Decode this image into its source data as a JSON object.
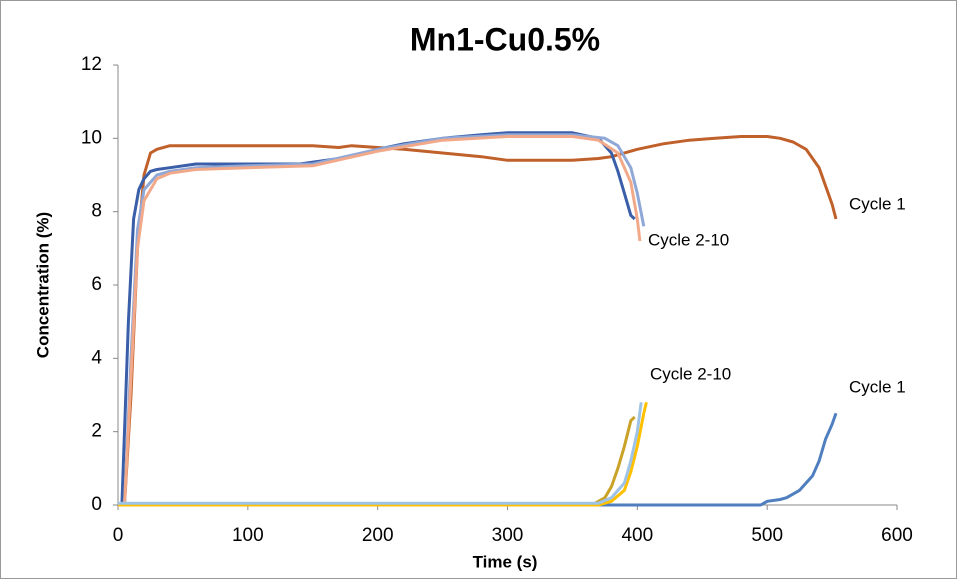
{
  "chart_data": {
    "type": "line",
    "title": "Mn1-Cu0.5%",
    "xlabel": "Time (s)",
    "ylabel": "Concentration (%)",
    "xlim": [
      0,
      600
    ],
    "xticks": [
      0,
      100,
      200,
      300,
      400,
      500,
      600
    ],
    "ylim": [
      0,
      12
    ],
    "yticks": [
      0,
      2,
      4,
      6,
      8,
      10,
      12
    ],
    "grid": false,
    "annotations": [
      "Cycle 1",
      "Cycle 2-10",
      "Cycle 2-10",
      "Cycle 1"
    ],
    "series": [
      {
        "color": "#c0602a",
        "x": [
          5,
          10,
          15,
          20,
          25,
          30,
          40,
          50,
          100,
          150,
          170,
          180,
          200,
          220,
          250,
          280,
          300,
          320,
          350,
          370,
          380,
          400,
          420,
          440,
          460,
          480,
          500,
          510,
          520,
          530,
          540,
          550,
          553
        ],
        "values": [
          0,
          3,
          7,
          9,
          9.6,
          9.7,
          9.8,
          9.8,
          9.8,
          9.8,
          9.75,
          9.8,
          9.75,
          9.7,
          9.6,
          9.5,
          9.4,
          9.4,
          9.4,
          9.45,
          9.5,
          9.7,
          9.85,
          9.95,
          10,
          10.05,
          10.05,
          10,
          9.9,
          9.7,
          9.2,
          8.2,
          7.8
        ]
      },
      {
        "color": "#3a5ea8",
        "x": [
          3,
          8,
          12,
          16,
          20,
          25,
          30,
          40,
          60,
          100,
          140,
          160,
          180,
          200,
          220,
          250,
          280,
          300,
          350,
          370,
          380,
          385,
          390,
          395,
          398
        ],
        "values": [
          0,
          5,
          7.8,
          8.6,
          8.9,
          9.1,
          9.15,
          9.2,
          9.3,
          9.3,
          9.3,
          9.4,
          9.5,
          9.7,
          9.85,
          10,
          10.1,
          10.15,
          10.15,
          10,
          9.6,
          9.1,
          8.5,
          7.9,
          7.8
        ]
      },
      {
        "color": "#8fa8d8",
        "x": [
          5,
          10,
          15,
          20,
          30,
          40,
          60,
          100,
          150,
          200,
          250,
          300,
          350,
          375,
          385,
          395,
          400,
          405
        ],
        "values": [
          0,
          4,
          7.5,
          8.6,
          9,
          9.1,
          9.2,
          9.25,
          9.3,
          9.7,
          10,
          10.1,
          10.1,
          10,
          9.8,
          9.2,
          8.5,
          7.6
        ]
      },
      {
        "color": "#f2a98a",
        "x": [
          5,
          10,
          15,
          20,
          30,
          40,
          60,
          100,
          150,
          200,
          250,
          300,
          350,
          370,
          385,
          395,
          400,
          402
        ],
        "values": [
          0,
          3.5,
          7,
          8.3,
          8.9,
          9.05,
          9.15,
          9.2,
          9.25,
          9.65,
          9.95,
          10.05,
          10.05,
          9.95,
          9.6,
          8.8,
          7.8,
          7.2
        ]
      },
      {
        "color": "#4f7fbf",
        "x": [
          0,
          495,
          500,
          510,
          515,
          525,
          535,
          540,
          545,
          550,
          553
        ],
        "values": [
          0,
          0,
          0.1,
          0.15,
          0.2,
          0.4,
          0.8,
          1.2,
          1.8,
          2.2,
          2.5
        ]
      },
      {
        "color": "#c9a227",
        "x": [
          0,
          365,
          375,
          380,
          385,
          390,
          395,
          398
        ],
        "values": [
          0,
          0,
          0.2,
          0.5,
          1,
          1.6,
          2.3,
          2.4
        ]
      },
      {
        "color": "#ffc000",
        "x": [
          0,
          370,
          380,
          390,
          395,
          400,
          405,
          407
        ],
        "values": [
          0,
          0,
          0.1,
          0.4,
          0.9,
          1.6,
          2.5,
          2.8
        ]
      },
      {
        "color": "#9dc3e6",
        "x": [
          0,
          370,
          380,
          390,
          395,
          400,
          403
        ],
        "values": [
          0.05,
          0.05,
          0.2,
          0.6,
          1.2,
          2,
          2.8
        ]
      }
    ]
  }
}
